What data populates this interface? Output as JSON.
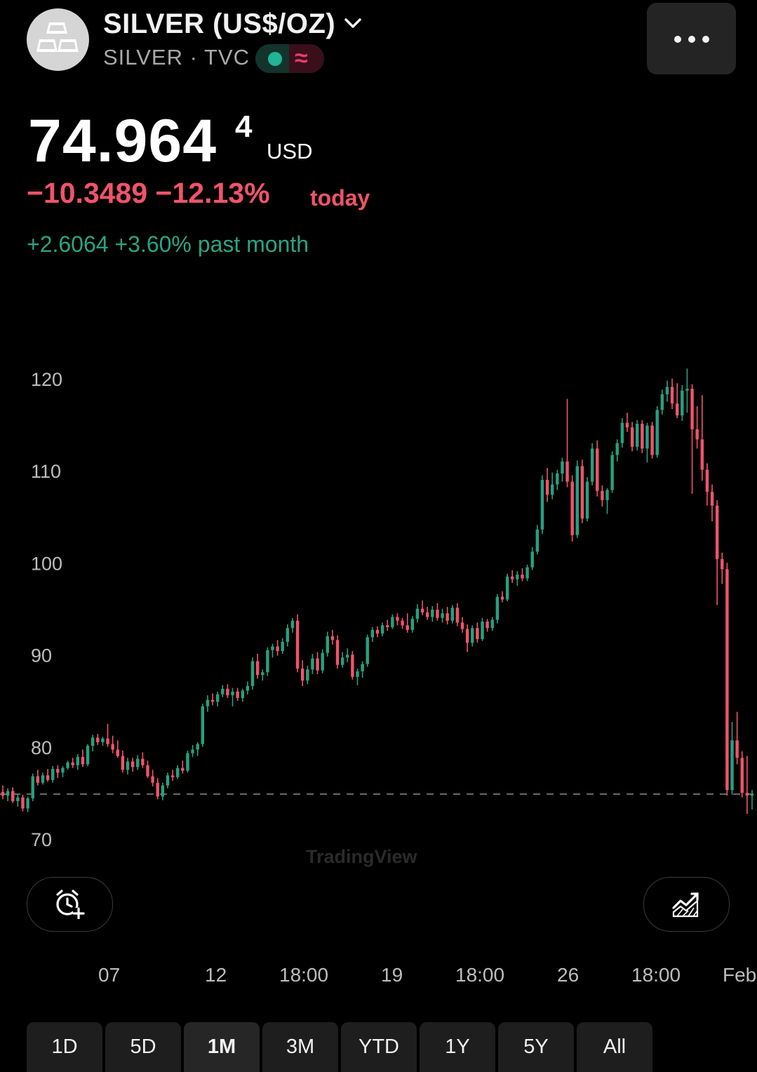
{
  "header": {
    "title": "SILVER (US$/OZ)",
    "subtitle": "SILVER · TVC",
    "icons": {
      "logo": "silver-bars-icon",
      "dropdown": "chevron-down-icon",
      "status": "market-open-dot-icon",
      "data": "delayed-wave-icon",
      "more": "more-dots-icon"
    },
    "wave_glyph": "≈"
  },
  "quote": {
    "price": "74.964",
    "price_sup": "4",
    "currency": "USD",
    "change_today": "−10.3489 −12.13%",
    "change_today_label": "today",
    "change_month": "+2.6064 +3.60% past month"
  },
  "colors": {
    "up": "#26a17f",
    "down": "#f0546a",
    "background": "#000000"
  },
  "chart_data": {
    "type": "candlestick",
    "yticks": [
      "120",
      "110",
      "100",
      "90",
      "80",
      "70"
    ],
    "ylim": [
      69,
      123
    ],
    "xticks": [
      "07",
      "12",
      "18:00",
      "19",
      "18:00",
      "26",
      "18:00",
      "Feb"
    ],
    "reference_line": 74.9644,
    "watermark": "TradingView",
    "candles": [
      {
        "o": 75.2,
        "h": 75.9,
        "l": 74.4,
        "c": 74.8
      },
      {
        "o": 74.8,
        "h": 75.6,
        "l": 74.2,
        "c": 75.3
      },
      {
        "o": 75.3,
        "h": 75.7,
        "l": 74.0,
        "c": 74.2
      },
      {
        "o": 74.2,
        "h": 74.9,
        "l": 73.6,
        "c": 74.6
      },
      {
        "o": 74.6,
        "h": 74.9,
        "l": 73.1,
        "c": 73.4
      },
      {
        "o": 73.4,
        "h": 74.7,
        "l": 73.0,
        "c": 74.5
      },
      {
        "o": 74.5,
        "h": 77.2,
        "l": 74.2,
        "c": 76.9
      },
      {
        "o": 76.9,
        "h": 77.6,
        "l": 75.9,
        "c": 76.2
      },
      {
        "o": 76.2,
        "h": 77.3,
        "l": 76.0,
        "c": 77.0
      },
      {
        "o": 77.0,
        "h": 77.7,
        "l": 76.3,
        "c": 76.5
      },
      {
        "o": 76.5,
        "h": 78.0,
        "l": 76.2,
        "c": 77.7
      },
      {
        "o": 77.7,
        "h": 78.1,
        "l": 76.7,
        "c": 77.3
      },
      {
        "o": 77.3,
        "h": 78.0,
        "l": 76.8,
        "c": 77.8
      },
      {
        "o": 77.8,
        "h": 78.6,
        "l": 77.6,
        "c": 78.4
      },
      {
        "o": 78.4,
        "h": 78.9,
        "l": 77.8,
        "c": 78.1
      },
      {
        "o": 78.1,
        "h": 79.3,
        "l": 77.6,
        "c": 79.0
      },
      {
        "o": 79.0,
        "h": 79.8,
        "l": 77.9,
        "c": 78.2
      },
      {
        "o": 78.2,
        "h": 80.4,
        "l": 78.0,
        "c": 80.2
      },
      {
        "o": 80.2,
        "h": 81.4,
        "l": 79.6,
        "c": 81.1
      },
      {
        "o": 81.1,
        "h": 81.5,
        "l": 80.3,
        "c": 80.6
      },
      {
        "o": 80.6,
        "h": 81.2,
        "l": 80.2,
        "c": 81.0
      },
      {
        "o": 81.0,
        "h": 82.6,
        "l": 80.1,
        "c": 80.4
      },
      {
        "o": 80.4,
        "h": 81.3,
        "l": 79.4,
        "c": 79.8
      },
      {
        "o": 79.8,
        "h": 80.8,
        "l": 78.9,
        "c": 79.1
      },
      {
        "o": 79.1,
        "h": 79.7,
        "l": 77.3,
        "c": 77.6
      },
      {
        "o": 77.6,
        "h": 78.9,
        "l": 77.1,
        "c": 78.5
      },
      {
        "o": 78.5,
        "h": 78.9,
        "l": 77.4,
        "c": 77.9
      },
      {
        "o": 77.9,
        "h": 79.2,
        "l": 77.6,
        "c": 78.8
      },
      {
        "o": 78.8,
        "h": 79.5,
        "l": 77.8,
        "c": 78.1
      },
      {
        "o": 78.1,
        "h": 78.6,
        "l": 76.7,
        "c": 76.9
      },
      {
        "o": 76.9,
        "h": 77.6,
        "l": 75.8,
        "c": 76.2
      },
      {
        "o": 76.2,
        "h": 76.7,
        "l": 74.4,
        "c": 74.7
      },
      {
        "o": 74.7,
        "h": 76.2,
        "l": 74.3,
        "c": 75.9
      },
      {
        "o": 75.9,
        "h": 77.3,
        "l": 75.6,
        "c": 77.0
      },
      {
        "o": 77.0,
        "h": 77.6,
        "l": 76.4,
        "c": 76.8
      },
      {
        "o": 76.8,
        "h": 78.1,
        "l": 76.6,
        "c": 77.8
      },
      {
        "o": 77.8,
        "h": 78.6,
        "l": 77.2,
        "c": 77.5
      },
      {
        "o": 77.5,
        "h": 79.7,
        "l": 77.3,
        "c": 79.4
      },
      {
        "o": 79.4,
        "h": 80.3,
        "l": 79.0,
        "c": 79.8
      },
      {
        "o": 79.8,
        "h": 80.6,
        "l": 79.1,
        "c": 80.4
      },
      {
        "o": 80.4,
        "h": 84.8,
        "l": 80.1,
        "c": 84.5
      },
      {
        "o": 84.5,
        "h": 85.7,
        "l": 83.9,
        "c": 85.2
      },
      {
        "o": 85.2,
        "h": 85.9,
        "l": 84.6,
        "c": 85.0
      },
      {
        "o": 85.0,
        "h": 86.1,
        "l": 84.5,
        "c": 85.8
      },
      {
        "o": 85.8,
        "h": 86.8,
        "l": 85.5,
        "c": 86.4
      },
      {
        "o": 86.4,
        "h": 86.9,
        "l": 85.4,
        "c": 85.7
      },
      {
        "o": 85.7,
        "h": 86.5,
        "l": 84.5,
        "c": 86.1
      },
      {
        "o": 86.1,
        "h": 86.5,
        "l": 85.1,
        "c": 85.4
      },
      {
        "o": 85.4,
        "h": 86.4,
        "l": 85.0,
        "c": 86.2
      },
      {
        "o": 86.2,
        "h": 87.2,
        "l": 85.8,
        "c": 86.7
      },
      {
        "o": 86.7,
        "h": 89.8,
        "l": 86.3,
        "c": 89.4
      },
      {
        "o": 89.4,
        "h": 90.2,
        "l": 87.5,
        "c": 87.9
      },
      {
        "o": 87.9,
        "h": 88.5,
        "l": 87.3,
        "c": 88.2
      },
      {
        "o": 88.2,
        "h": 90.9,
        "l": 87.8,
        "c": 90.6
      },
      {
        "o": 90.6,
        "h": 91.3,
        "l": 89.8,
        "c": 91.0
      },
      {
        "o": 91.0,
        "h": 91.7,
        "l": 90.0,
        "c": 90.5
      },
      {
        "o": 90.5,
        "h": 91.9,
        "l": 90.2,
        "c": 91.5
      },
      {
        "o": 91.5,
        "h": 93.4,
        "l": 91.0,
        "c": 93.0
      },
      {
        "o": 93.0,
        "h": 94.1,
        "l": 92.5,
        "c": 93.8
      },
      {
        "o": 93.8,
        "h": 94.5,
        "l": 88.2,
        "c": 88.6
      },
      {
        "o": 88.6,
        "h": 89.5,
        "l": 86.7,
        "c": 87.3
      },
      {
        "o": 87.3,
        "h": 88.9,
        "l": 86.9,
        "c": 88.5
      },
      {
        "o": 88.5,
        "h": 90.2,
        "l": 88.0,
        "c": 89.7
      },
      {
        "o": 89.7,
        "h": 90.4,
        "l": 88.0,
        "c": 88.4
      },
      {
        "o": 88.4,
        "h": 90.7,
        "l": 88.1,
        "c": 90.3
      },
      {
        "o": 90.3,
        "h": 92.6,
        "l": 89.9,
        "c": 92.1
      },
      {
        "o": 92.1,
        "h": 92.8,
        "l": 91.2,
        "c": 91.7
      },
      {
        "o": 91.7,
        "h": 92.2,
        "l": 88.6,
        "c": 89.0
      },
      {
        "o": 89.0,
        "h": 90.4,
        "l": 88.7,
        "c": 89.8
      },
      {
        "o": 89.8,
        "h": 90.8,
        "l": 89.3,
        "c": 90.1
      },
      {
        "o": 90.1,
        "h": 90.5,
        "l": 87.4,
        "c": 87.7
      },
      {
        "o": 87.7,
        "h": 88.6,
        "l": 86.8,
        "c": 88.3
      },
      {
        "o": 88.3,
        "h": 89.4,
        "l": 87.6,
        "c": 89.1
      },
      {
        "o": 89.1,
        "h": 92.3,
        "l": 88.8,
        "c": 92.0
      },
      {
        "o": 92.0,
        "h": 93.1,
        "l": 91.5,
        "c": 92.8
      },
      {
        "o": 92.8,
        "h": 93.2,
        "l": 92.0,
        "c": 92.4
      },
      {
        "o": 92.4,
        "h": 93.6,
        "l": 92.1,
        "c": 93.3
      },
      {
        "o": 93.3,
        "h": 93.9,
        "l": 92.7,
        "c": 93.1
      },
      {
        "o": 93.1,
        "h": 94.5,
        "l": 92.9,
        "c": 94.2
      },
      {
        "o": 94.2,
        "h": 94.6,
        "l": 93.3,
        "c": 93.8
      },
      {
        "o": 93.8,
        "h": 94.1,
        "l": 92.9,
        "c": 93.3
      },
      {
        "o": 93.3,
        "h": 94.6,
        "l": 92.5,
        "c": 92.8
      },
      {
        "o": 92.8,
        "h": 94.3,
        "l": 92.5,
        "c": 94.0
      },
      {
        "o": 94.0,
        "h": 95.6,
        "l": 93.6,
        "c": 95.1
      },
      {
        "o": 95.1,
        "h": 96.0,
        "l": 94.4,
        "c": 94.7
      },
      {
        "o": 94.7,
        "h": 95.3,
        "l": 93.9,
        "c": 94.2
      },
      {
        "o": 94.2,
        "h": 95.4,
        "l": 93.7,
        "c": 95.0
      },
      {
        "o": 95.0,
        "h": 95.7,
        "l": 93.8,
        "c": 94.1
      },
      {
        "o": 94.1,
        "h": 95.1,
        "l": 93.6,
        "c": 94.6
      },
      {
        "o": 94.6,
        "h": 95.3,
        "l": 93.4,
        "c": 93.8
      },
      {
        "o": 93.8,
        "h": 95.5,
        "l": 93.5,
        "c": 95.2
      },
      {
        "o": 95.2,
        "h": 95.7,
        "l": 93.2,
        "c": 93.6
      },
      {
        "o": 93.6,
        "h": 94.2,
        "l": 92.5,
        "c": 92.9
      },
      {
        "o": 92.9,
        "h": 93.4,
        "l": 90.4,
        "c": 91.4
      },
      {
        "o": 91.4,
        "h": 93.3,
        "l": 91.0,
        "c": 93.0
      },
      {
        "o": 93.0,
        "h": 93.6,
        "l": 91.4,
        "c": 91.8
      },
      {
        "o": 91.8,
        "h": 94.1,
        "l": 91.6,
        "c": 93.7
      },
      {
        "o": 93.7,
        "h": 94.0,
        "l": 92.6,
        "c": 93.0
      },
      {
        "o": 93.0,
        "h": 94.2,
        "l": 92.7,
        "c": 93.9
      },
      {
        "o": 93.9,
        "h": 96.7,
        "l": 93.5,
        "c": 96.4
      },
      {
        "o": 96.4,
        "h": 97.0,
        "l": 95.8,
        "c": 96.1
      },
      {
        "o": 96.1,
        "h": 98.9,
        "l": 95.9,
        "c": 98.6
      },
      {
        "o": 98.6,
        "h": 99.3,
        "l": 97.9,
        "c": 98.3
      },
      {
        "o": 98.3,
        "h": 99.2,
        "l": 97.6,
        "c": 98.8
      },
      {
        "o": 98.8,
        "h": 99.5,
        "l": 98.1,
        "c": 98.4
      },
      {
        "o": 98.4,
        "h": 99.9,
        "l": 98.1,
        "c": 99.6
      },
      {
        "o": 99.6,
        "h": 101.8,
        "l": 99.3,
        "c": 101.3
      },
      {
        "o": 101.3,
        "h": 104.2,
        "l": 101.0,
        "c": 103.7
      },
      {
        "o": 103.7,
        "h": 109.6,
        "l": 103.2,
        "c": 109.1
      },
      {
        "o": 109.1,
        "h": 110.4,
        "l": 106.7,
        "c": 107.5
      },
      {
        "o": 107.5,
        "h": 109.9,
        "l": 107.0,
        "c": 108.6
      },
      {
        "o": 108.6,
        "h": 110.2,
        "l": 108.0,
        "c": 109.8
      },
      {
        "o": 109.8,
        "h": 111.5,
        "l": 108.9,
        "c": 111.1
      },
      {
        "o": 111.1,
        "h": 117.9,
        "l": 108.3,
        "c": 108.9
      },
      {
        "o": 108.9,
        "h": 109.6,
        "l": 102.4,
        "c": 103.1
      },
      {
        "o": 103.1,
        "h": 111.2,
        "l": 102.8,
        "c": 110.6
      },
      {
        "o": 110.6,
        "h": 111.3,
        "l": 104.4,
        "c": 104.9
      },
      {
        "o": 104.9,
        "h": 109.4,
        "l": 104.6,
        "c": 108.9
      },
      {
        "o": 108.9,
        "h": 113.1,
        "l": 108.5,
        "c": 112.5
      },
      {
        "o": 112.5,
        "h": 113.4,
        "l": 107.3,
        "c": 107.9
      },
      {
        "o": 107.9,
        "h": 108.5,
        "l": 106.2,
        "c": 106.9
      },
      {
        "o": 106.9,
        "h": 108.2,
        "l": 105.4,
        "c": 108.0
      },
      {
        "o": 108.0,
        "h": 112.2,
        "l": 107.7,
        "c": 111.8
      },
      {
        "o": 111.8,
        "h": 113.5,
        "l": 111.1,
        "c": 113.1
      },
      {
        "o": 113.1,
        "h": 115.8,
        "l": 112.6,
        "c": 115.3
      },
      {
        "o": 115.3,
        "h": 116.4,
        "l": 114.3,
        "c": 114.8
      },
      {
        "o": 114.8,
        "h": 115.4,
        "l": 112.2,
        "c": 112.7
      },
      {
        "o": 112.7,
        "h": 115.6,
        "l": 112.3,
        "c": 115.2
      },
      {
        "o": 115.2,
        "h": 115.6,
        "l": 112.0,
        "c": 112.5
      },
      {
        "o": 112.5,
        "h": 115.3,
        "l": 111.0,
        "c": 115.0
      },
      {
        "o": 115.0,
        "h": 115.4,
        "l": 111.4,
        "c": 111.8
      },
      {
        "o": 111.8,
        "h": 117.1,
        "l": 111.5,
        "c": 116.7
      },
      {
        "o": 116.7,
        "h": 118.9,
        "l": 116.2,
        "c": 118.4
      },
      {
        "o": 118.4,
        "h": 119.9,
        "l": 117.6,
        "c": 119.2
      },
      {
        "o": 119.2,
        "h": 120.1,
        "l": 116.8,
        "c": 117.4
      },
      {
        "o": 117.4,
        "h": 119.6,
        "l": 115.8,
        "c": 116.1
      },
      {
        "o": 116.1,
        "h": 119.4,
        "l": 115.5,
        "c": 118.8
      },
      {
        "o": 118.8,
        "h": 121.2,
        "l": 116.4,
        "c": 119.0
      },
      {
        "o": 119.0,
        "h": 119.5,
        "l": 107.6,
        "c": 114.6
      },
      {
        "o": 114.6,
        "h": 117.1,
        "l": 112.5,
        "c": 113.5
      },
      {
        "o": 113.5,
        "h": 118.3,
        "l": 109.0,
        "c": 110.2
      },
      {
        "o": 110.2,
        "h": 110.9,
        "l": 106.3,
        "c": 107.8
      },
      {
        "o": 107.8,
        "h": 108.6,
        "l": 104.6,
        "c": 106.3
      },
      {
        "o": 106.3,
        "h": 106.9,
        "l": 95.5,
        "c": 100.5
      },
      {
        "o": 100.5,
        "h": 101.2,
        "l": 97.8,
        "c": 99.4
      },
      {
        "o": 99.4,
        "h": 100.1,
        "l": 74.8,
        "c": 75.4
      },
      {
        "o": 75.4,
        "h": 82.8,
        "l": 74.9,
        "c": 80.8
      },
      {
        "o": 80.8,
        "h": 83.9,
        "l": 78.2,
        "c": 78.9
      },
      {
        "o": 78.9,
        "h": 79.6,
        "l": 74.6,
        "c": 75.1
      },
      {
        "o": 75.1,
        "h": 79.1,
        "l": 72.8,
        "c": 74.8
      },
      {
        "o": 74.8,
        "h": 75.4,
        "l": 73.3,
        "c": 74.96
      }
    ]
  },
  "controls": {
    "alert_icon": "add-alert-clock-icon",
    "indicator_icon": "chart-indicator-icon"
  },
  "ranges": [
    {
      "label": "1D"
    },
    {
      "label": "5D"
    },
    {
      "label": "1M"
    },
    {
      "label": "3M"
    },
    {
      "label": "YTD"
    },
    {
      "label": "1Y"
    },
    {
      "label": "5Y"
    },
    {
      "label": "All"
    }
  ],
  "active_range": "1M"
}
